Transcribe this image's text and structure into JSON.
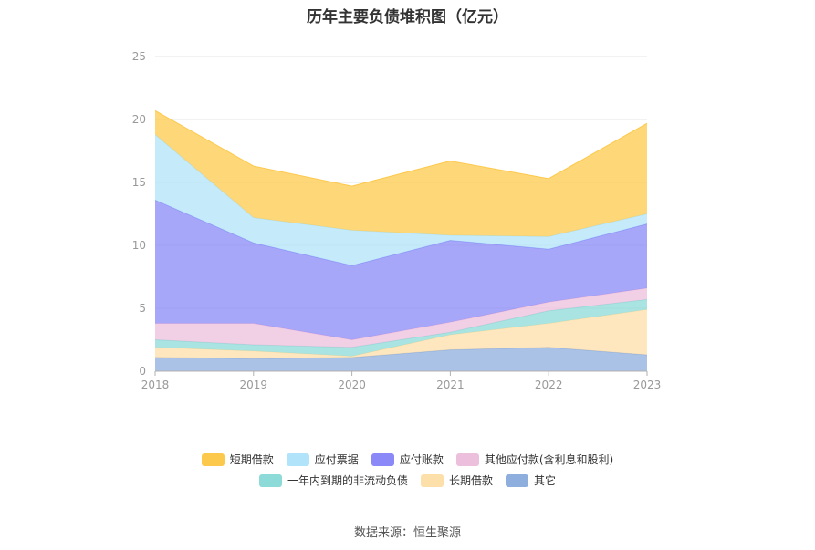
{
  "chart_data": {
    "type": "area",
    "stacked": true,
    "title": "历年主要负债堆积图（亿元）",
    "x": [
      "2018",
      "2019",
      "2020",
      "2021",
      "2022",
      "2023"
    ],
    "ylim": [
      0,
      25
    ],
    "yticks": [
      "0",
      "5",
      "10",
      "15",
      "20",
      "25"
    ],
    "grid": true,
    "legend_position": "bottom",
    "series": [
      {
        "name": "其它",
        "color": "#8eaedd",
        "values": [
          1.1,
          1.0,
          1.1,
          1.7,
          1.9,
          1.3
        ]
      },
      {
        "name": "长期借款",
        "color": "#fddfa9",
        "values": [
          0.8,
          0.6,
          0.1,
          1.2,
          1.9,
          3.6
        ]
      },
      {
        "name": "一年内到期的非流动负债",
        "color": "#8ddbd8",
        "values": [
          0.6,
          0.5,
          0.7,
          0.2,
          1.0,
          0.8
        ]
      },
      {
        "name": "其他应付款(含利息和股利)",
        "color": "#ecbfdc",
        "values": [
          1.3,
          1.7,
          0.6,
          0.8,
          0.7,
          0.9
        ]
      },
      {
        "name": "应付账款",
        "color": "#8a89f7",
        "values": [
          9.8,
          6.4,
          5.9,
          6.5,
          4.2,
          5.1
        ]
      },
      {
        "name": "应付票据",
        "color": "#b1e4fa",
        "values": [
          5.2,
          2.0,
          2.8,
          0.4,
          1.0,
          0.8
        ]
      },
      {
        "name": "短期借款",
        "color": "#fdc94c",
        "values": [
          1.9,
          4.1,
          3.5,
          5.9,
          4.6,
          7.2
        ]
      }
    ],
    "legend_rows": [
      [
        "短期借款",
        "应付票据",
        "应付账款",
        "其他应付款(含利息和股利)"
      ],
      [
        "一年内到期的非流动负债",
        "长期借款",
        "其它"
      ]
    ]
  },
  "source": "数据来源：恒生聚源"
}
